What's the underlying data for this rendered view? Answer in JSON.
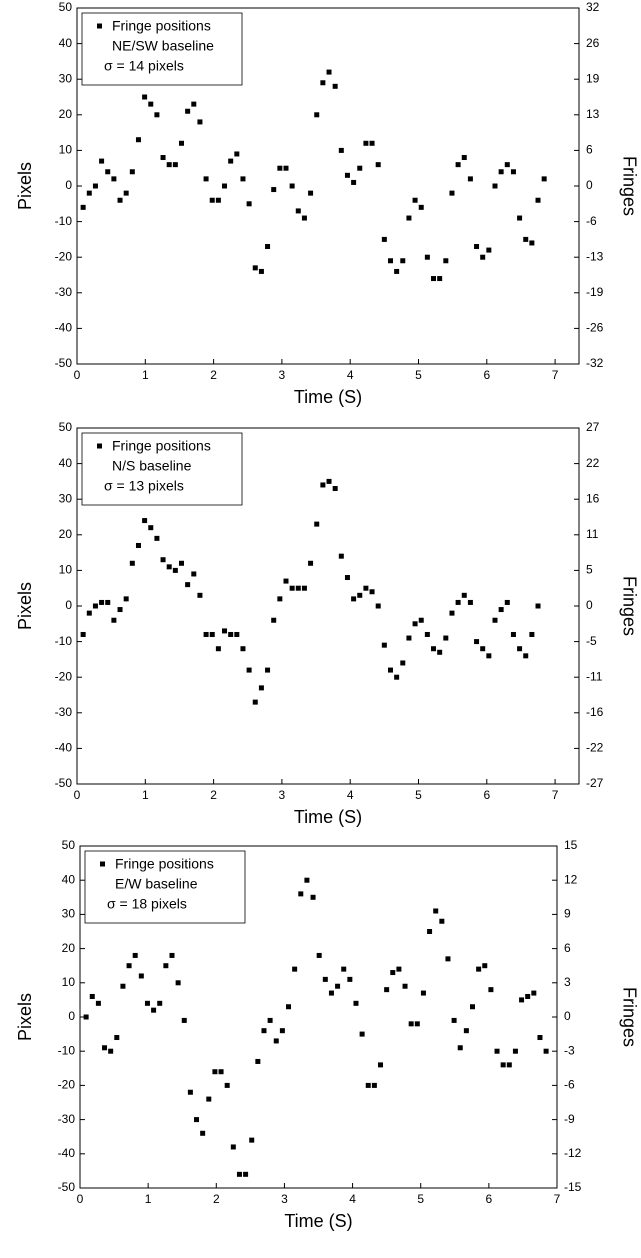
{
  "chart_data": [
    {
      "type": "scatter",
      "xlabel": "Time (S)",
      "ylabel": "Pixels",
      "y2label": "Fringes",
      "legend": "upper left",
      "annotations": [
        "NE/SW baseline",
        "σ = 14 pixels"
      ],
      "xlim": [
        0,
        7.35
      ],
      "xticks": [
        0,
        1,
        2,
        3,
        4,
        5,
        6,
        7
      ],
      "ylim": [
        -50,
        50
      ],
      "yticks": [
        -50,
        -40,
        -30,
        -20,
        -10,
        0,
        10,
        20,
        30,
        40,
        50
      ],
      "y2lim": [
        -32,
        32
      ],
      "y2ticks": [
        {
          "value": -32,
          "label": "-32"
        },
        {
          "value": -25.6,
          "label": "-26"
        },
        {
          "value": -19.2,
          "label": "-19"
        },
        {
          "value": -12.8,
          "label": "-13"
        },
        {
          "value": -6.4,
          "label": "-6"
        },
        0,
        {
          "value": 6.4,
          "label": "6"
        },
        {
          "value": 12.8,
          "label": "13"
        },
        {
          "value": 19.2,
          "label": "19"
        },
        {
          "value": 25.6,
          "label": "26"
        },
        32
      ],
      "x": [
        0.09,
        0.18,
        0.27,
        0.36,
        0.45,
        0.54,
        0.63,
        0.72,
        0.81,
        0.9,
        0.99,
        1.08,
        1.17,
        1.26,
        1.35,
        1.44,
        1.53,
        1.62,
        1.71,
        1.8,
        1.89,
        1.98,
        2.07,
        2.16,
        2.25,
        2.34,
        2.43,
        2.52,
        2.61,
        2.7,
        2.79,
        2.88,
        2.97,
        3.06,
        3.15,
        3.24,
        3.33,
        3.42,
        3.51,
        3.6,
        3.69,
        3.78,
        3.87,
        3.96,
        4.05,
        4.14,
        4.23,
        4.32,
        4.41,
        4.5,
        4.59,
        4.68,
        4.77,
        4.86,
        4.95,
        5.04,
        5.13,
        5.22,
        5.31,
        5.4,
        5.49,
        5.58,
        5.67,
        5.76,
        5.85,
        5.94,
        6.03,
        6.12,
        6.21,
        6.3,
        6.39,
        6.48,
        6.57,
        6.66,
        6.75,
        6.84
      ],
      "series": [
        {
          "name": "Fringe positions",
          "color": "#000000",
          "values": [
            -6,
            -2,
            0,
            7,
            4,
            2,
            -4,
            -2,
            4,
            13,
            25,
            23,
            20,
            8,
            6,
            6,
            12,
            21,
            23,
            18,
            2,
            -4,
            -4,
            0,
            7,
            9,
            2,
            -5,
            -23,
            -24,
            -17,
            -1,
            5,
            5,
            0,
            -7,
            -9,
            -2,
            20,
            29,
            32,
            28,
            10,
            3,
            1,
            5,
            12,
            12,
            6,
            -15,
            -21,
            -24,
            -21,
            -9,
            -4,
            -6,
            -20,
            -26,
            -26,
            -21,
            -2,
            6,
            8,
            2,
            -17,
            -20,
            -18,
            0,
            4,
            6,
            4,
            -9,
            -15,
            -16,
            -4,
            2
          ]
        }
      ]
    },
    {
      "type": "scatter",
      "xlabel": "Time (S)",
      "ylabel": "Pixels",
      "y2label": "Fringes",
      "legend": "upper left",
      "annotations": [
        "N/S baseline",
        "σ = 13 pixels"
      ],
      "xlim": [
        0,
        7.35
      ],
      "xticks": [
        0,
        1,
        2,
        3,
        4,
        5,
        6,
        7
      ],
      "ylim": [
        -50,
        50
      ],
      "yticks": [
        -50,
        -40,
        -30,
        -20,
        -10,
        0,
        10,
        20,
        30,
        40,
        50
      ],
      "y2lim": [
        -27,
        27
      ],
      "y2ticks": [
        -27,
        {
          "value": -21.6,
          "label": "-22"
        },
        {
          "value": -16.2,
          "label": "-16"
        },
        {
          "value": -10.8,
          "label": "-11"
        },
        {
          "value": -5.4,
          "label": "-5"
        },
        0,
        {
          "value": 5.4,
          "label": "5"
        },
        {
          "value": 10.8,
          "label": "11"
        },
        {
          "value": 16.2,
          "label": "16"
        },
        {
          "value": 21.6,
          "label": "22"
        },
        27
      ],
      "x": [
        0.09,
        0.18,
        0.27,
        0.36,
        0.45,
        0.54,
        0.63,
        0.72,
        0.81,
        0.9,
        0.99,
        1.08,
        1.17,
        1.26,
        1.35,
        1.44,
        1.53,
        1.62,
        1.71,
        1.8,
        1.89,
        1.98,
        2.07,
        2.16,
        2.25,
        2.34,
        2.43,
        2.52,
        2.61,
        2.7,
        2.79,
        2.88,
        2.97,
        3.06,
        3.15,
        3.24,
        3.33,
        3.42,
        3.51,
        3.6,
        3.69,
        3.78,
        3.87,
        3.96,
        4.05,
        4.14,
        4.23,
        4.32,
        4.41,
        4.5,
        4.59,
        4.68,
        4.77,
        4.86,
        4.95,
        5.04,
        5.13,
        5.22,
        5.31,
        5.4,
        5.49,
        5.58,
        5.67,
        5.76,
        5.85,
        5.94,
        6.03,
        6.12,
        6.21,
        6.3,
        6.39,
        6.48,
        6.57,
        6.66,
        6.75
      ],
      "series": [
        {
          "name": "Fringe positions",
          "color": "#000000",
          "values": [
            -8,
            -2,
            0,
            1,
            1,
            -4,
            -1,
            2,
            12,
            17,
            24,
            22,
            19,
            13,
            11,
            10,
            12,
            6,
            9,
            3,
            -8,
            -8,
            -12,
            -7,
            -8,
            -8,
            -12,
            -18,
            -27,
            -23,
            -18,
            -4,
            2,
            7,
            5,
            5,
            5,
            12,
            23,
            34,
            35,
            33,
            14,
            8,
            2,
            3,
            5,
            4,
            0,
            -11,
            -18,
            -20,
            -16,
            -9,
            -5,
            -4,
            -8,
            -12,
            -13,
            -9,
            -2,
            1,
            3,
            1,
            -10,
            -12,
            -14,
            -4,
            -1,
            1,
            -8,
            -12,
            -14,
            -8,
            0
          ]
        }
      ]
    },
    {
      "type": "scatter",
      "xlabel": "Time (S)",
      "ylabel": "Pixels",
      "y2label": "Fringes",
      "legend": "upper left",
      "annotations": [
        "E/W baseline",
        "σ = 18 pixels"
      ],
      "xlim": [
        0,
        7
      ],
      "xticks": [
        0,
        1,
        2,
        3,
        4,
        5,
        6,
        7
      ],
      "ylim": [
        -50,
        50
      ],
      "yticks": [
        -50,
        -40,
        -30,
        -20,
        -10,
        0,
        10,
        20,
        30,
        40,
        50
      ],
      "y2lim": [
        -15,
        15
      ],
      "y2ticks": [
        -15,
        -12,
        -9,
        -6,
        -3,
        0,
        3,
        6,
        9,
        12,
        15
      ],
      "x": [
        0.09,
        0.18,
        0.27,
        0.36,
        0.45,
        0.54,
        0.63,
        0.72,
        0.81,
        0.9,
        0.99,
        1.08,
        1.17,
        1.26,
        1.35,
        1.44,
        1.53,
        1.62,
        1.71,
        1.8,
        1.89,
        1.98,
        2.07,
        2.16,
        2.25,
        2.34,
        2.43,
        2.52,
        2.61,
        2.7,
        2.79,
        2.88,
        2.97,
        3.06,
        3.15,
        3.24,
        3.33,
        3.42,
        3.51,
        3.6,
        3.69,
        3.78,
        3.87,
        3.96,
        4.05,
        4.14,
        4.23,
        4.32,
        4.41,
        4.5,
        4.59,
        4.68,
        4.77,
        4.86,
        4.95,
        5.04,
        5.13,
        5.22,
        5.31,
        5.4,
        5.49,
        5.58,
        5.67,
        5.76,
        5.85,
        5.94,
        6.03,
        6.12,
        6.21,
        6.3,
        6.39,
        6.48,
        6.57,
        6.66,
        6.75,
        6.84
      ],
      "series": [
        {
          "name": "Fringe positions",
          "color": "#000000",
          "values": [
            0,
            6,
            4,
            -9,
            -10,
            -6,
            9,
            15,
            18,
            12,
            4,
            2,
            4,
            15,
            18,
            10,
            -1,
            -22,
            -30,
            -34,
            -24,
            -16,
            -16,
            -20,
            -38,
            -46,
            -46,
            -36,
            -13,
            -4,
            -1,
            -7,
            -4,
            3,
            14,
            36,
            40,
            35,
            18,
            11,
            7,
            9,
            14,
            11,
            4,
            -5,
            -20,
            -20,
            -14,
            8,
            13,
            14,
            9,
            -2,
            -2,
            7,
            25,
            31,
            28,
            17,
            -1,
            -9,
            -4,
            3,
            14,
            15,
            8,
            -10,
            -14,
            -14,
            -10,
            5,
            6,
            7,
            -6,
            -10
          ]
        }
      ]
    }
  ]
}
